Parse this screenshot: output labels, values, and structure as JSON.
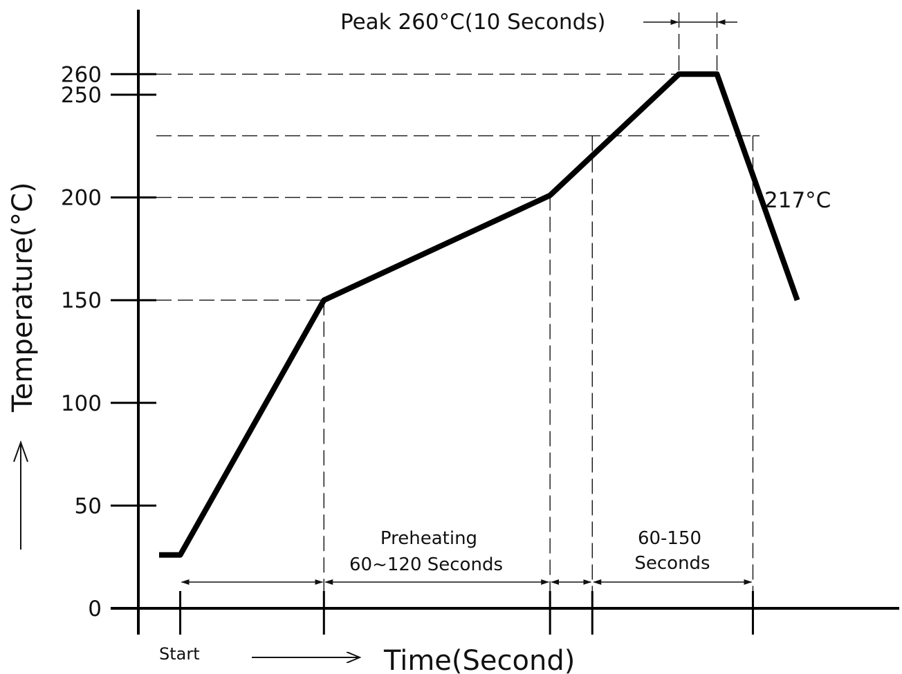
{
  "chart_data": {
    "type": "line",
    "title": "",
    "xlabel": "Time(Second)",
    "ylabel": "Temperature(°C)",
    "yticks": [
      0,
      50,
      100,
      150,
      200,
      250,
      260
    ],
    "ylim": [
      0,
      260
    ],
    "grid": false,
    "series": [
      {
        "values": [
          {
            "x": 0,
            "y": 26
          },
          {
            "x": 1,
            "y": 26
          },
          {
            "x": 7.8,
            "y": 150
          },
          {
            "x": 18.5,
            "y": 201
          },
          {
            "x": 24.6,
            "y": 260
          },
          {
            "x": 26.4,
            "y": 260
          },
          {
            "x": 30.2,
            "y": 150
          }
        ]
      }
    ],
    "x_markers": {
      "start": 1,
      "preheat_start": 7.8,
      "preheat_end": 18.5,
      "reflow_start": 20.5,
      "peak_start": 24.6,
      "peak_end": 26.4,
      "reflow_end": 28.1
    },
    "reference_levels": [
      150,
      200,
      230,
      260
    ],
    "annotations": {
      "start": "Start",
      "preheating_line1": "Preheating",
      "preheating_line2": "60~120 Seconds",
      "reflow_line1": "60-150",
      "reflow_line2": "Seconds",
      "liquidus": "217°C",
      "peak": "Peak 260°C(10 Seconds)"
    }
  }
}
